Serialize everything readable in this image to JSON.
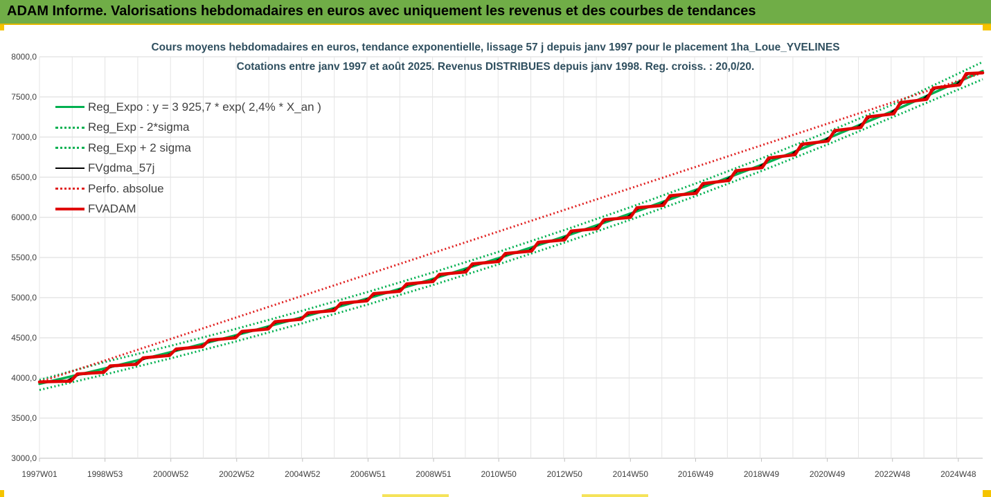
{
  "header": {
    "title": "ADAM Informe. Valorisations hebdomadaires en euros avec uniquement les revenus et des courbes de tendances"
  },
  "chart_data": {
    "type": "line",
    "title": "Cours moyens hebdomadaires en euros, tendance exponentielle, lissage 57 j depuis janv 1997 pour le placement 1ha_Loue_YVELINES",
    "subtitle": "Cotations entre janv 1997 et août 2025. Revenus DISTRIBUES depuis janv 1998. Reg. croiss. : 20,0/20.",
    "xlabel": "",
    "ylabel": "",
    "ylim": [
      3000,
      8000
    ],
    "xlim": [
      1997.0,
      2025.65
    ],
    "y_ticks": [
      "3000,0",
      "3500,0",
      "4000,0",
      "4500,0",
      "5000,0",
      "5500,0",
      "6000,0",
      "6500,0",
      "7000,0",
      "7500,0",
      "8000,0"
    ],
    "x_ticks": [
      {
        "label": "1997W01",
        "x": 1997.0
      },
      {
        "label": "1998W53",
        "x": 1998.99
      },
      {
        "label": "2000W52",
        "x": 2000.99
      },
      {
        "label": "2002W52",
        "x": 2002.99
      },
      {
        "label": "2004W52",
        "x": 2004.99
      },
      {
        "label": "2006W51",
        "x": 2006.98
      },
      {
        "label": "2008W51",
        "x": 2008.97
      },
      {
        "label": "2010W50",
        "x": 2010.95
      },
      {
        "label": "2012W50",
        "x": 2012.95
      },
      {
        "label": "2014W50",
        "x": 2014.95
      },
      {
        "label": "2016W49",
        "x": 2016.93
      },
      {
        "label": "2018W49",
        "x": 2018.93
      },
      {
        "label": "2020W49",
        "x": 2020.93
      },
      {
        "label": "2022W48",
        "x": 2022.91
      },
      {
        "label": "2024W48",
        "x": 2024.91
      }
    ],
    "grid": true,
    "legend_position": "top-left",
    "series": [
      {
        "name": "Reg_Expo : y = 3 925,7 * exp( 2,4% *  X_an )",
        "color": "#00b050",
        "style": "solid",
        "x": [
          1997.0,
          1999.0,
          2001.0,
          2003.0,
          2005.0,
          2007.0,
          2009.0,
          2011.0,
          2013.0,
          2015.0,
          2017.0,
          2019.0,
          2021.0,
          2023.0,
          2025.65
        ],
        "values": [
          3925.7,
          4120,
          4322,
          4535,
          4759,
          4994,
          5240,
          5498,
          5769,
          6054,
          6352,
          6665,
          6994,
          7339,
          7822
        ]
      },
      {
        "name": "Reg_Exp - 2*sigma",
        "color": "#00b050",
        "style": "dotted",
        "x": [
          1997.0,
          1999.0,
          2001.0,
          2003.0,
          2005.0,
          2007.0,
          2009.0,
          2011.0,
          2013.0,
          2015.0,
          2017.0,
          2019.0,
          2021.0,
          2023.0,
          2025.65
        ],
        "values": [
          3850,
          4044,
          4246,
          4459,
          4683,
          4918,
          5164,
          5422,
          5693,
          5978,
          6276,
          6589,
          6918,
          7263,
          7720
        ]
      },
      {
        "name": "Reg_Exp + 2 sigma",
        "color": "#00b050",
        "style": "dotted",
        "x": [
          1997.0,
          1999.0,
          2001.0,
          2003.0,
          2005.0,
          2007.0,
          2009.0,
          2011.0,
          2013.0,
          2015.0,
          2017.0,
          2019.0,
          2021.0,
          2023.0,
          2025.65
        ],
        "values": [
          3975,
          4200,
          4402,
          4615,
          4839,
          5074,
          5320,
          5578,
          5849,
          6134,
          6432,
          6745,
          7074,
          7419,
          7935
        ]
      },
      {
        "name": "FVgdma_57j",
        "color": "#000000",
        "style": "solid",
        "x": [
          1997.0,
          1997.8,
          1998.2,
          1998.8,
          1999.2,
          1999.8,
          2000.2,
          2000.8,
          2001.2,
          2001.8,
          2002.2,
          2002.8,
          2003.2,
          2003.8,
          2004.2,
          2004.8,
          2005.2,
          2005.8,
          2006.2,
          2006.8,
          2007.2,
          2007.8,
          2008.2,
          2008.8,
          2009.2,
          2009.8,
          2010.2,
          2010.8,
          2011.2,
          2011.8,
          2012.2,
          2012.8,
          2013.2,
          2013.8,
          2014.2,
          2014.8,
          2015.2,
          2015.8,
          2016.2,
          2016.8,
          2017.2,
          2017.8,
          2018.2,
          2018.8,
          2019.2,
          2019.8,
          2020.2,
          2020.8,
          2021.2,
          2021.8,
          2022.2,
          2022.8,
          2023.2,
          2023.8,
          2024.2,
          2024.8,
          2025.2,
          2025.65
        ],
        "values": [
          3950,
          3960,
          4040,
          4060,
          4140,
          4160,
          4240,
          4270,
          4350,
          4380,
          4460,
          4490,
          4570,
          4600,
          4690,
          4720,
          4800,
          4830,
          4920,
          4950,
          5040,
          5070,
          5160,
          5190,
          5280,
          5310,
          5410,
          5440,
          5540,
          5570,
          5680,
          5710,
          5820,
          5850,
          5960,
          5990,
          6110,
          6140,
          6260,
          6290,
          6410,
          6450,
          6570,
          6610,
          6730,
          6770,
          6900,
          6940,
          7070,
          7110,
          7240,
          7280,
          7420,
          7460,
          7600,
          7640,
          7780,
          7800
        ]
      },
      {
        "name": "Perfo. absolue",
        "color": "#e02020",
        "style": "dotted",
        "x": [
          1997.0,
          2025.65
        ],
        "values": [
          3950,
          7800
        ]
      },
      {
        "name": "FVADAM",
        "color": "#e00000",
        "style": "solid-thick",
        "x": [
          1997.0,
          1997.95,
          1998.15,
          1998.95,
          1999.15,
          1999.95,
          2000.15,
          2000.95,
          2001.15,
          2001.95,
          2002.15,
          2002.95,
          2003.15,
          2003.95,
          2004.15,
          2004.95,
          2005.15,
          2005.95,
          2006.15,
          2006.95,
          2007.15,
          2007.95,
          2008.15,
          2008.95,
          2009.15,
          2009.95,
          2010.15,
          2010.95,
          2011.15,
          2011.95,
          2012.15,
          2012.95,
          2013.15,
          2013.95,
          2014.15,
          2014.95,
          2015.15,
          2015.95,
          2016.15,
          2016.95,
          2017.15,
          2017.95,
          2018.15,
          2018.95,
          2019.15,
          2019.95,
          2020.15,
          2020.95,
          2021.15,
          2021.95,
          2022.15,
          2022.95,
          2023.15,
          2023.95,
          2024.15,
          2024.95,
          2025.15,
          2025.65
        ],
        "values": [
          3950,
          3960,
          4050,
          4070,
          4150,
          4170,
          4250,
          4280,
          4360,
          4390,
          4470,
          4500,
          4580,
          4610,
          4700,
          4730,
          4810,
          4840,
          4930,
          4960,
          5050,
          5080,
          5170,
          5200,
          5290,
          5320,
          5420,
          5450,
          5550,
          5580,
          5690,
          5720,
          5830,
          5860,
          5970,
          6000,
          6120,
          6150,
          6270,
          6300,
          6420,
          6460,
          6580,
          6620,
          6740,
          6780,
          6910,
          6950,
          7080,
          7120,
          7250,
          7290,
          7430,
          7470,
          7610,
          7650,
          7790,
          7800
        ]
      }
    ]
  }
}
